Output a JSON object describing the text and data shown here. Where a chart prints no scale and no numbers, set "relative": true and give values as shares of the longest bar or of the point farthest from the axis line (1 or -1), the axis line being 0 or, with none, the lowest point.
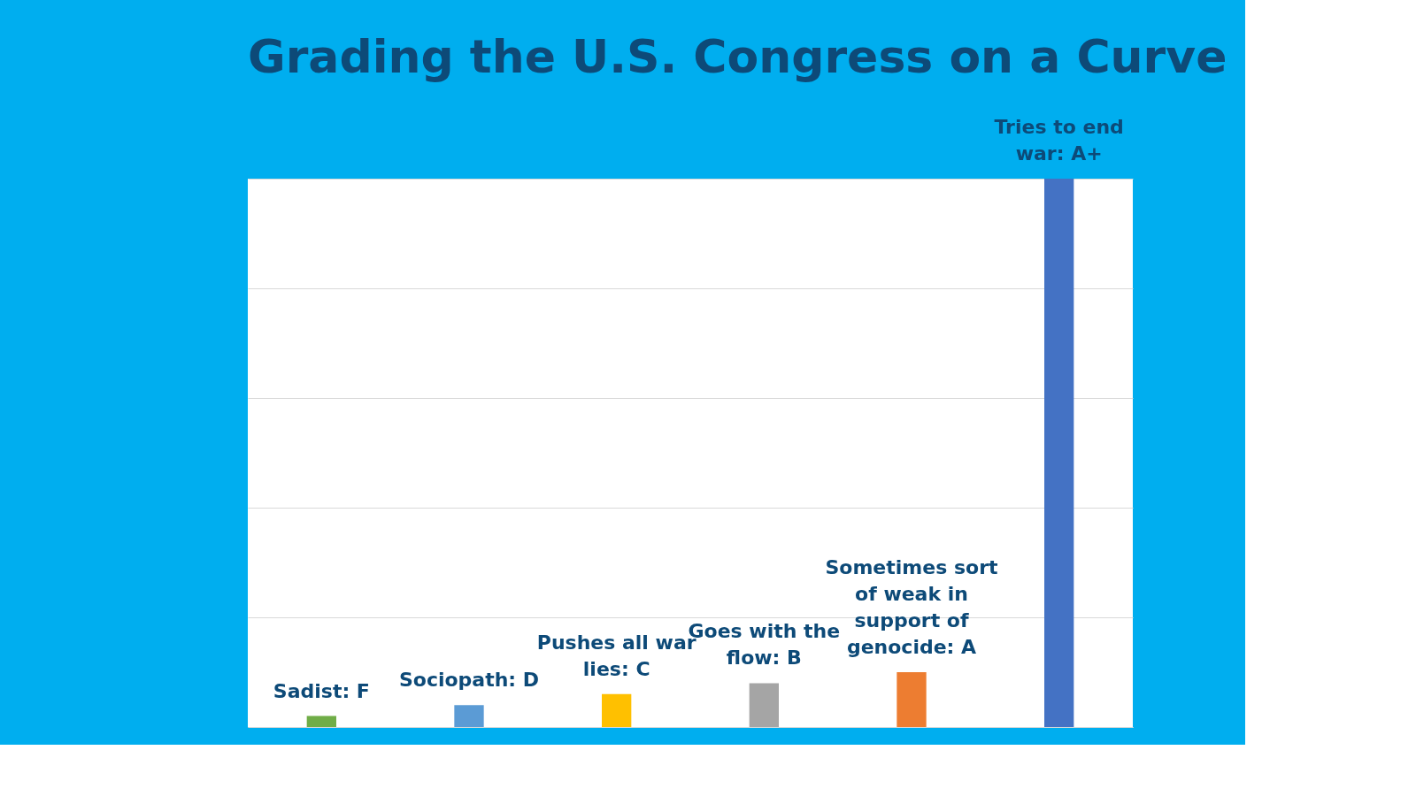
{
  "chart_data": {
    "type": "bar",
    "title": "Grading the U.S. Congress on a Curve",
    "categories": [
      "Sadist: F",
      "Sociopath: D",
      "Pushes all war lies: C",
      "Goes with the flow: B",
      "Sometimes sort of weak in support of genocide: A",
      "Tries to end war: A+"
    ],
    "values": [
      0.02,
      0.04,
      0.06,
      0.08,
      0.1,
      1
    ],
    "colors": [
      "#70ad47",
      "#5b9bd5",
      "#ffc000",
      "#a5a5a5",
      "#ed7d31",
      "#4472c4"
    ],
    "relative": true,
    "grid": "y"
  }
}
